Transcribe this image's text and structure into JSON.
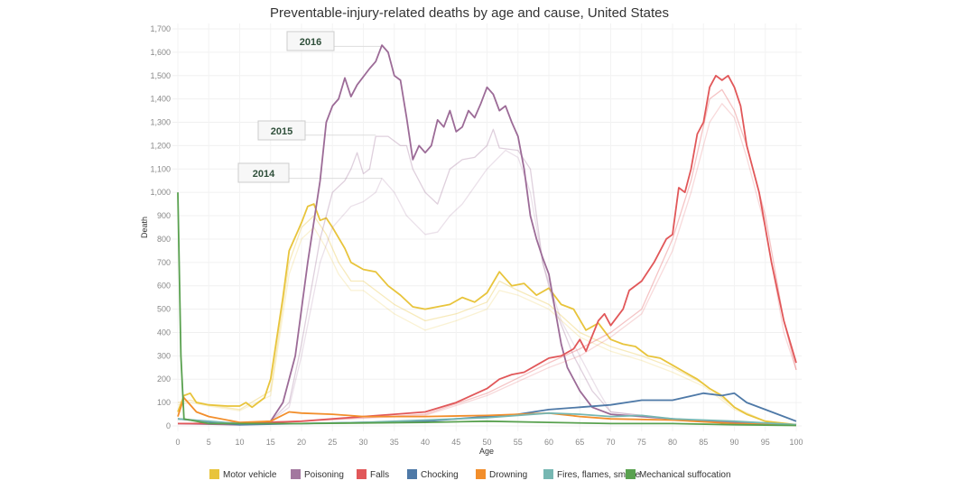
{
  "chart_data": {
    "type": "line",
    "title": "Preventable-injury-related deaths by age and cause, United States",
    "xlabel": "Age",
    "ylabel": "Death",
    "xlim": [
      0,
      100
    ],
    "ylim": [
      0,
      1700
    ],
    "xticks": [
      0,
      5,
      10,
      15,
      20,
      25,
      30,
      35,
      40,
      45,
      50,
      55,
      60,
      65,
      70,
      75,
      80,
      85,
      90,
      95,
      100
    ],
    "yticks": [
      0,
      100,
      200,
      300,
      400,
      500,
      600,
      700,
      800,
      900,
      1000,
      1100,
      1200,
      1300,
      1400,
      1500,
      1600,
      1700
    ],
    "grid": true,
    "legend_position": "bottom",
    "annotations": [
      {
        "label": "2016",
        "y": 1625
      },
      {
        "label": "2015",
        "y": 1245
      },
      {
        "label": "2014",
        "y": 1060
      }
    ],
    "series": [
      {
        "name": "Motor vehicle",
        "year": "2014",
        "color": "#e8c43b",
        "emphasis": false,
        "x": [
          0,
          2,
          5,
          10,
          15,
          18,
          20,
          22,
          24,
          26,
          28,
          30,
          35,
          40,
          45,
          50,
          52,
          55,
          60,
          65,
          70,
          75,
          80,
          85,
          90,
          95,
          100
        ],
        "y": [
          90,
          100,
          85,
          65,
          130,
          650,
          800,
          850,
          760,
          650,
          580,
          580,
          480,
          410,
          450,
          500,
          580,
          560,
          500,
          380,
          320,
          280,
          230,
          170,
          70,
          18,
          5
        ]
      },
      {
        "name": "Motor vehicle",
        "year": "2015",
        "color": "#e8c43b",
        "emphasis": false,
        "x": [
          0,
          2,
          5,
          10,
          15,
          18,
          20,
          22,
          24,
          26,
          28,
          30,
          35,
          40,
          45,
          50,
          52,
          55,
          60,
          65,
          70,
          75,
          80,
          85,
          90,
          95,
          100
        ],
        "y": [
          100,
          110,
          90,
          70,
          150,
          700,
          850,
          900,
          820,
          700,
          620,
          620,
          520,
          450,
          480,
          530,
          620,
          580,
          520,
          400,
          340,
          300,
          250,
          180,
          80,
          20,
          5
        ]
      },
      {
        "name": "Motor vehicle",
        "year": "2016",
        "color": "#e8c43b",
        "emphasis": true,
        "x": [
          0,
          1,
          2,
          3,
          5,
          8,
          10,
          11,
          12,
          14,
          15,
          17,
          18,
          20,
          21,
          22,
          23,
          24,
          25,
          27,
          28,
          30,
          32,
          34,
          36,
          38,
          40,
          42,
          44,
          46,
          48,
          50,
          52,
          54,
          56,
          58,
          60,
          62,
          64,
          66,
          68,
          70,
          72,
          74,
          76,
          78,
          80,
          82,
          84,
          86,
          88,
          90,
          92,
          95,
          100
        ],
        "y": [
          60,
          130,
          140,
          100,
          90,
          85,
          85,
          100,
          80,
          120,
          200,
          550,
          750,
          870,
          940,
          950,
          880,
          890,
          850,
          760,
          700,
          670,
          660,
          600,
          560,
          510,
          500,
          510,
          520,
          550,
          530,
          570,
          660,
          600,
          610,
          560,
          590,
          520,
          500,
          410,
          440,
          370,
          350,
          340,
          300,
          290,
          260,
          230,
          200,
          160,
          130,
          80,
          50,
          20,
          5
        ]
      },
      {
        "name": "Poisoning",
        "year": "2014",
        "color": "#a3779f",
        "emphasis": false,
        "x": [
          0,
          10,
          15,
          18,
          20,
          23,
          25,
          28,
          30,
          32,
          33,
          35,
          37,
          40,
          42,
          44,
          46,
          50,
          53,
          55,
          57,
          59,
          62,
          65,
          68,
          70,
          80,
          100
        ],
        "y": [
          10,
          5,
          20,
          80,
          300,
          700,
          850,
          940,
          960,
          1000,
          1060,
          1000,
          900,
          820,
          830,
          900,
          950,
          1100,
          1180,
          1150,
          1000,
          700,
          450,
          300,
          150,
          60,
          30,
          5
        ]
      },
      {
        "name": "Poisoning",
        "year": "2015",
        "color": "#a3779f",
        "emphasis": false,
        "x": [
          0,
          10,
          15,
          18,
          20,
          23,
          25,
          27,
          28,
          29,
          30,
          31,
          32,
          34,
          36,
          37,
          38,
          40,
          42,
          44,
          46,
          48,
          50,
          51,
          52,
          55,
          57,
          59,
          61,
          64,
          67,
          70,
          80,
          100
        ],
        "y": [
          10,
          5,
          20,
          100,
          350,
          800,
          1000,
          1050,
          1100,
          1170,
          1080,
          1100,
          1240,
          1240,
          1200,
          1200,
          1100,
          1000,
          950,
          1100,
          1140,
          1150,
          1200,
          1270,
          1190,
          1180,
          1100,
          700,
          500,
          300,
          150,
          60,
          30,
          5
        ]
      },
      {
        "name": "Poisoning",
        "year": "2016",
        "color": "#9c6b97",
        "emphasis": true,
        "x": [
          0,
          10,
          15,
          17,
          19,
          21,
          23,
          24,
          25,
          26,
          27,
          28,
          29,
          31,
          32,
          33,
          34,
          35,
          36,
          37,
          38,
          39,
          40,
          41,
          42,
          43,
          44,
          45,
          46,
          47,
          48,
          49,
          50,
          51,
          52,
          53,
          54,
          55,
          56,
          57,
          58,
          59,
          60,
          61,
          62,
          63,
          65,
          67,
          70,
          75,
          80,
          85,
          90,
          100
        ],
        "y": [
          10,
          5,
          20,
          100,
          300,
          700,
          1050,
          1300,
          1370,
          1400,
          1490,
          1410,
          1460,
          1530,
          1560,
          1630,
          1600,
          1500,
          1480,
          1320,
          1140,
          1200,
          1170,
          1200,
          1310,
          1280,
          1350,
          1260,
          1280,
          1350,
          1320,
          1380,
          1450,
          1420,
          1350,
          1370,
          1300,
          1240,
          1100,
          900,
          800,
          720,
          650,
          500,
          350,
          250,
          150,
          80,
          50,
          40,
          30,
          20,
          15,
          5
        ]
      },
      {
        "name": "Falls",
        "year": "2014",
        "color": "#e15759",
        "emphasis": false,
        "x": [
          0,
          20,
          40,
          50,
          60,
          65,
          70,
          75,
          80,
          83,
          86,
          88,
          90,
          92,
          95,
          98,
          100
        ],
        "y": [
          10,
          20,
          45,
          130,
          250,
          300,
          380,
          480,
          750,
          1000,
          1300,
          1380,
          1320,
          1150,
          850,
          400,
          240
        ]
      },
      {
        "name": "Falls",
        "year": "2015",
        "color": "#e15759",
        "emphasis": false,
        "x": [
          0,
          20,
          40,
          50,
          60,
          65,
          70,
          75,
          80,
          83,
          86,
          88,
          90,
          92,
          95,
          98,
          100
        ],
        "y": [
          10,
          20,
          50,
          140,
          270,
          330,
          400,
          500,
          800,
          1050,
          1400,
          1440,
          1350,
          1200,
          900,
          450,
          240
        ]
      },
      {
        "name": "Falls",
        "year": "2016",
        "color": "#e15759",
        "emphasis": true,
        "x": [
          0,
          10,
          20,
          30,
          35,
          40,
          45,
          50,
          52,
          54,
          56,
          58,
          60,
          62,
          64,
          65,
          66,
          68,
          69,
          70,
          72,
          73,
          75,
          77,
          79,
          80,
          81,
          82,
          83,
          84,
          85,
          86,
          87,
          88,
          89,
          90,
          91,
          92,
          94,
          96,
          98,
          100
        ],
        "y": [
          10,
          10,
          20,
          40,
          50,
          60,
          100,
          160,
          200,
          220,
          230,
          260,
          290,
          300,
          330,
          370,
          320,
          450,
          480,
          430,
          500,
          580,
          620,
          700,
          800,
          820,
          1020,
          1000,
          1100,
          1250,
          1300,
          1450,
          1500,
          1480,
          1500,
          1450,
          1370,
          1200,
          1000,
          700,
          450,
          270
        ]
      },
      {
        "name": "Chocking",
        "year": "2016",
        "color": "#4e79a7",
        "emphasis": true,
        "x": [
          0,
          10,
          20,
          30,
          40,
          50,
          55,
          60,
          65,
          70,
          75,
          80,
          85,
          88,
          90,
          92,
          95,
          98,
          100
        ],
        "y": [
          30,
          5,
          10,
          15,
          20,
          40,
          50,
          70,
          80,
          90,
          110,
          110,
          140,
          130,
          140,
          100,
          70,
          40,
          20
        ]
      },
      {
        "name": "Drowning",
        "year": "2016",
        "color": "#f28e2b",
        "emphasis": true,
        "x": [
          0,
          1,
          3,
          5,
          10,
          15,
          18,
          20,
          25,
          30,
          40,
          50,
          55,
          60,
          65,
          70,
          80,
          90,
          100
        ],
        "y": [
          40,
          120,
          60,
          40,
          15,
          20,
          60,
          55,
          50,
          40,
          40,
          45,
          50,
          55,
          40,
          30,
          25,
          10,
          3
        ]
      },
      {
        "name": "Fires, flames, smoke",
        "year": "2016",
        "color": "#76b7b2",
        "emphasis": true,
        "x": [
          0,
          5,
          10,
          20,
          30,
          40,
          50,
          60,
          65,
          70,
          75,
          80,
          90,
          100
        ],
        "y": [
          30,
          20,
          10,
          10,
          15,
          25,
          35,
          55,
          50,
          40,
          45,
          30,
          20,
          5
        ]
      },
      {
        "name": "Mechanical suffocation",
        "year": "2016",
        "color": "#59a14f",
        "emphasis": true,
        "x": [
          0,
          0.5,
          1,
          5,
          20,
          40,
          50,
          60,
          70,
          80,
          90,
          100
        ],
        "y": [
          1000,
          300,
          30,
          10,
          10,
          15,
          20,
          15,
          10,
          10,
          5,
          2
        ]
      }
    ],
    "legend": [
      {
        "name": "Motor vehicle",
        "color": "#e8c43b"
      },
      {
        "name": "Poisoning",
        "color": "#a3779f"
      },
      {
        "name": "Falls",
        "color": "#e15759"
      },
      {
        "name": "Chocking",
        "color": "#4e79a7"
      },
      {
        "name": "Drowning",
        "color": "#f28e2b"
      },
      {
        "name": "Fires, flames, smoke",
        "color": "#76b7b2"
      },
      {
        "name": "Mechanical suffocation",
        "color": "#59a14f"
      }
    ]
  }
}
